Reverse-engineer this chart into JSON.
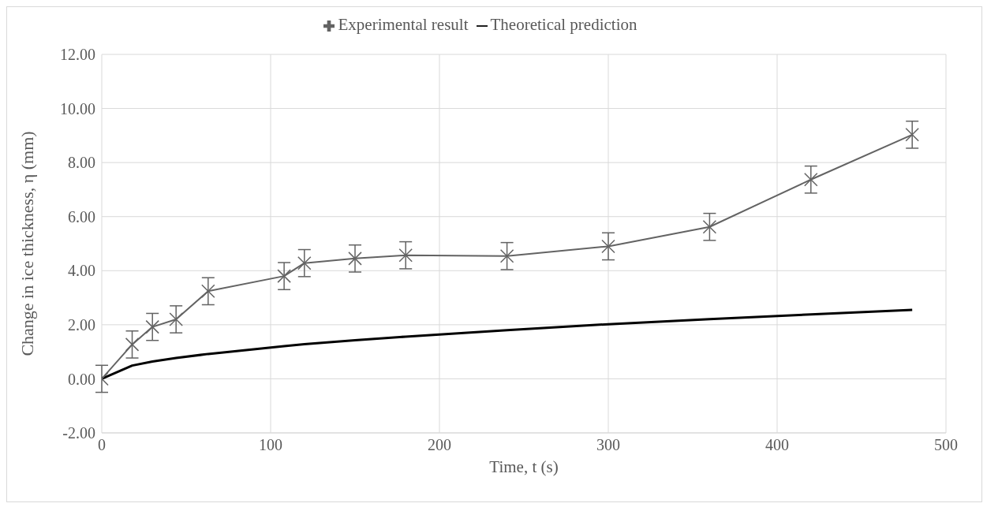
{
  "chart_data": {
    "type": "line",
    "xlabel": "Time, t (s)",
    "ylabel": "Change in ice thickness, η (mm)",
    "xlim": [
      0,
      500
    ],
    "xticks": [
      0,
      100,
      200,
      300,
      400,
      500
    ],
    "ylim": [
      -2,
      12
    ],
    "yticks": [
      {
        "value": -2,
        "label": "-2.00"
      },
      {
        "value": 0,
        "label": "0.00"
      },
      {
        "value": 2,
        "label": "2.00"
      },
      {
        "value": 4,
        "label": "4.00"
      },
      {
        "value": 6,
        "label": "6.00"
      },
      {
        "value": 8,
        "label": "8.00"
      },
      {
        "value": 10,
        "label": "10.00"
      },
      {
        "value": 12,
        "label": "12.00"
      }
    ],
    "grid": true,
    "legend": "top",
    "series": [
      {
        "name": "Experimental result",
        "color": "#636363",
        "marker": "cross",
        "x": [
          0,
          18,
          30,
          44,
          63,
          108,
          120,
          150,
          180,
          240,
          300,
          360,
          420,
          480
        ],
        "values": [
          0,
          1.27,
          1.92,
          2.2,
          3.24,
          3.8,
          4.28,
          4.45,
          4.57,
          4.54,
          4.9,
          5.62,
          7.37,
          9.03
        ],
        "errors": [
          0.5,
          0.5,
          0.5,
          0.5,
          0.5,
          0.5,
          0.5,
          0.5,
          0.5,
          0.5,
          0.5,
          0.5,
          0.5,
          0.5
        ]
      },
      {
        "name": "Theoretical prediction",
        "color": "#000000",
        "marker": "none",
        "x": [
          0,
          18,
          30,
          44,
          63,
          108,
          120,
          150,
          180,
          240,
          300,
          360,
          420,
          480
        ],
        "values": [
          0,
          0.49,
          0.64,
          0.77,
          0.92,
          1.21,
          1.28,
          1.43,
          1.56,
          1.8,
          2.02,
          2.21,
          2.38,
          2.55
        ]
      }
    ]
  }
}
